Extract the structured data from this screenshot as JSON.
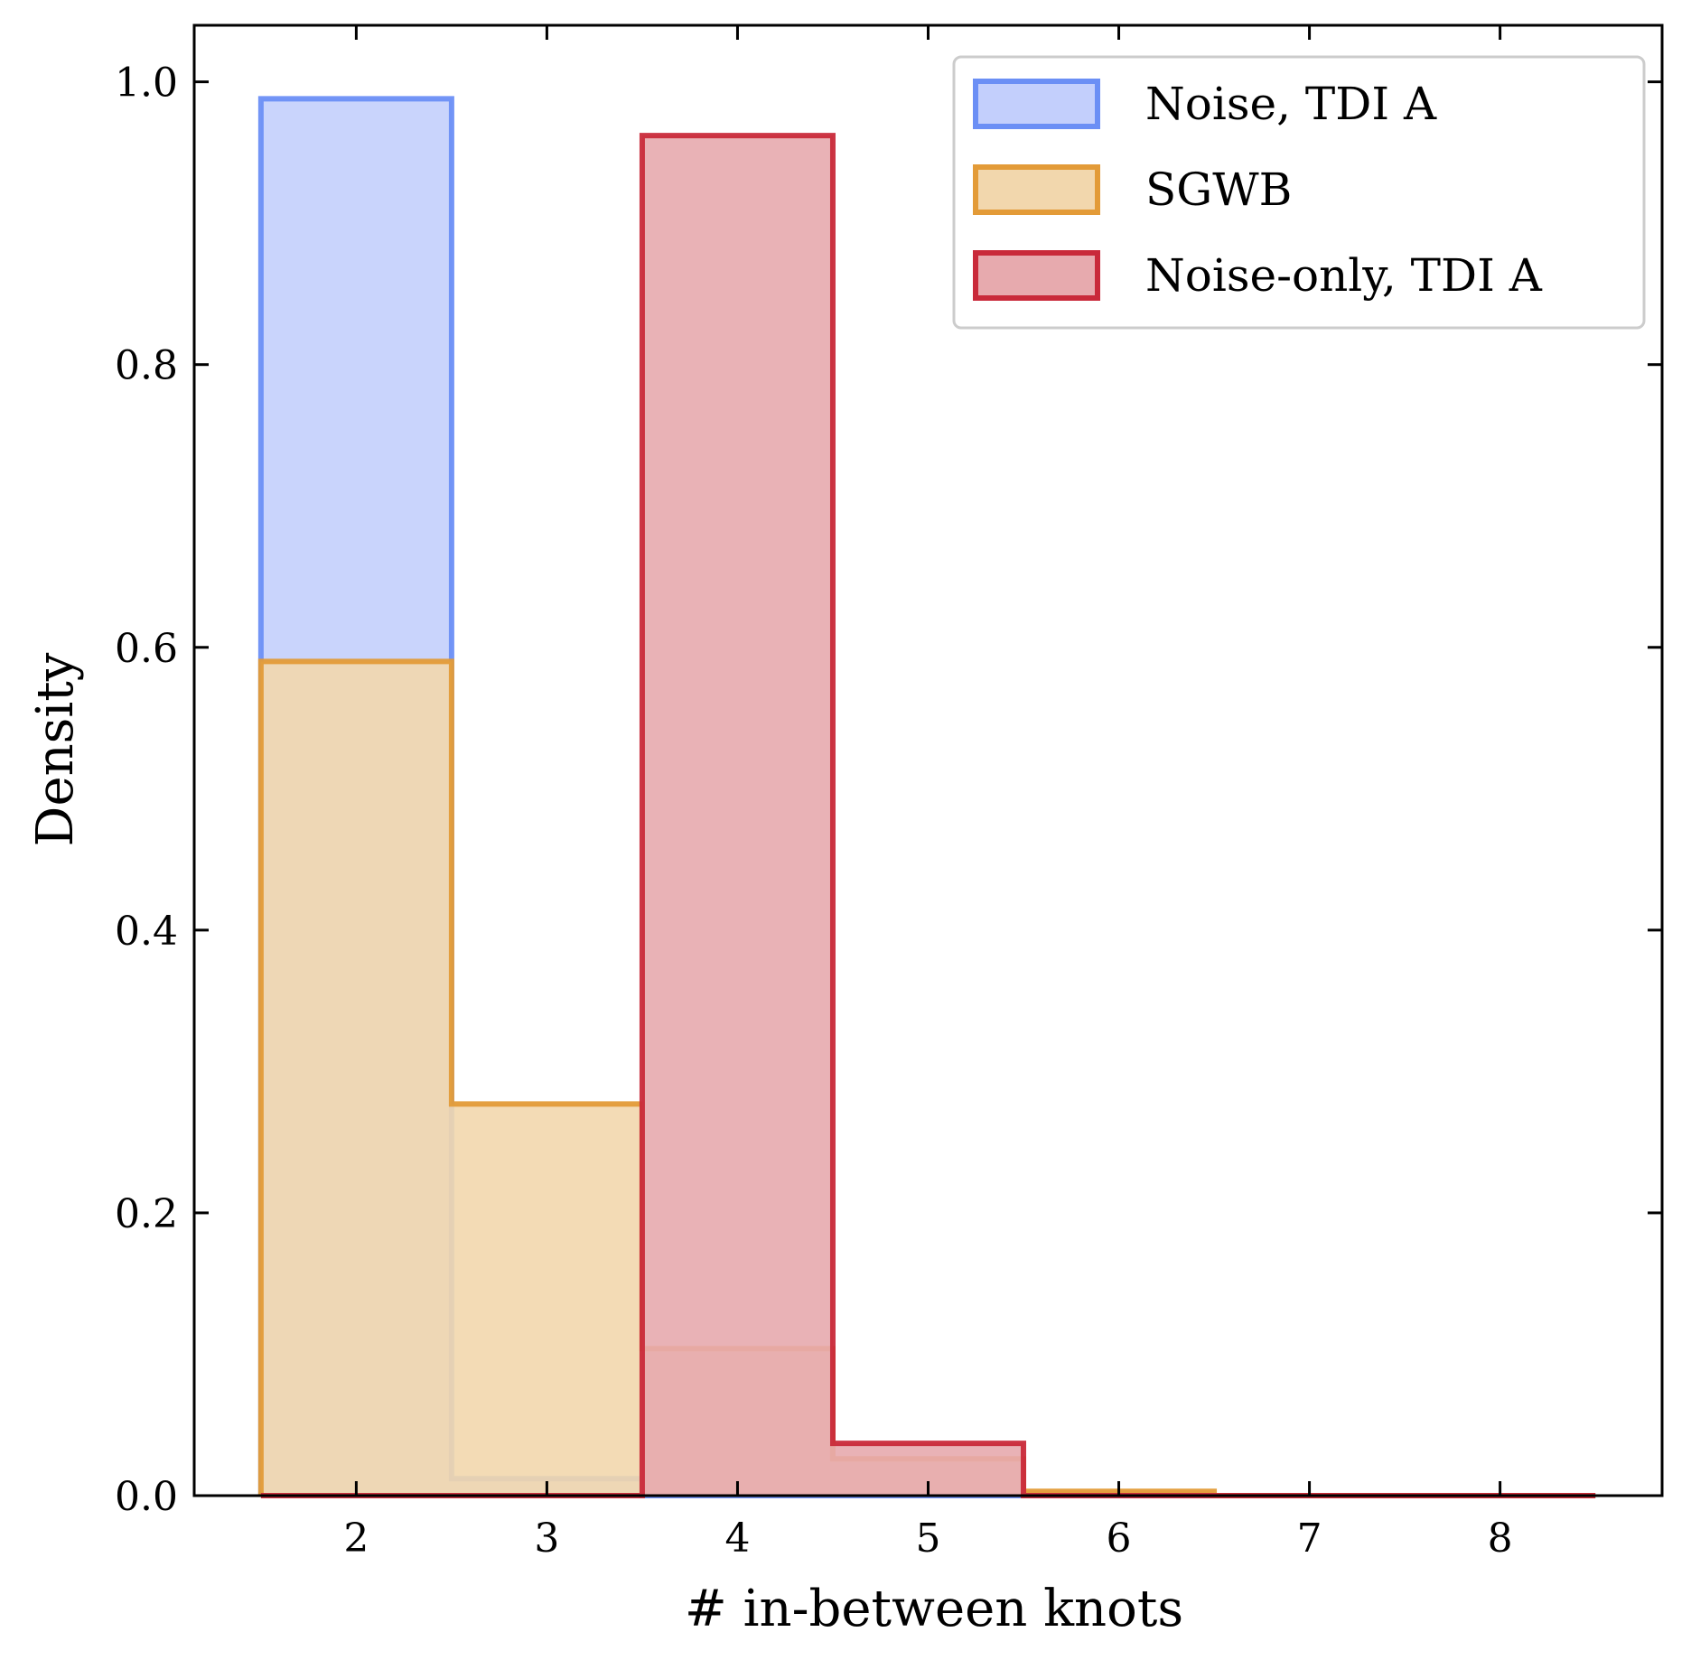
{
  "chart_data": {
    "type": "bar",
    "subtype": "step-histogram",
    "xlabel": "# in-between knots",
    "ylabel": "Density",
    "xlim": [
      1.15,
      8.85
    ],
    "ylim": [
      0.0,
      1.04
    ],
    "x_ticks": [
      2,
      3,
      4,
      5,
      6,
      7,
      8
    ],
    "y_ticks": [
      0.0,
      0.2,
      0.4,
      0.6,
      0.8,
      1.0
    ],
    "x_tick_labels": [
      "2",
      "3",
      "4",
      "5",
      "6",
      "7",
      "8"
    ],
    "y_tick_labels": [
      "0.0",
      "0.2",
      "0.4",
      "0.6",
      "0.8",
      "1.0"
    ],
    "bin_edges": [
      1.5,
      2.5,
      3.5,
      4.5,
      5.5,
      6.5,
      7.5,
      8.5
    ],
    "grid": false,
    "legend_position": "top-right",
    "series": [
      {
        "name": "Noise, TDI A",
        "values": [
          0.988,
          0.012,
          0.0,
          0.0,
          0.0,
          0.0,
          0.0
        ],
        "edge_color": "#6b8ff5",
        "fill_color": "#c3cffc"
      },
      {
        "name": "SGWB",
        "values": [
          0.59,
          0.277,
          0.104,
          0.026,
          0.003,
          0.0,
          0.0
        ],
        "edge_color": "#e39b38",
        "fill_color": "#f2d7ad"
      },
      {
        "name": "Noise-only, TDI A",
        "values": [
          0.0,
          0.0,
          0.962,
          0.037,
          0.0,
          0.0,
          0.0
        ],
        "edge_color": "#c92a3a",
        "fill_color": "#e7aaae"
      }
    ]
  }
}
